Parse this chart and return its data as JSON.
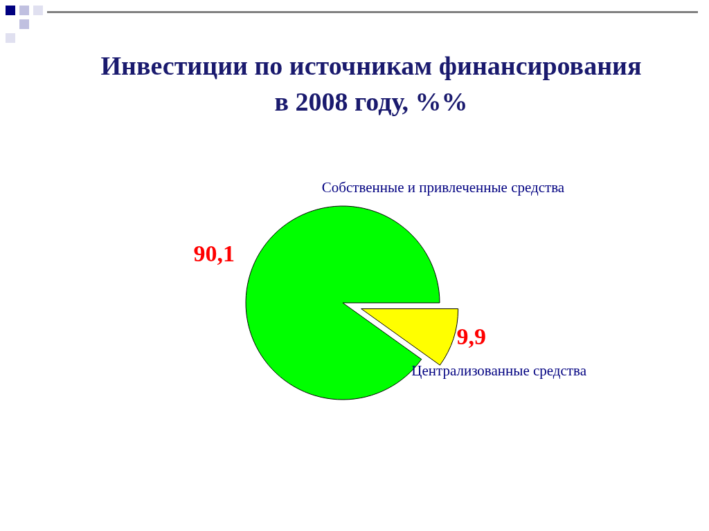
{
  "chart_data": {
    "type": "pie",
    "title": "Инвестиции по источникам финансирования в 2008 году, %%",
    "categories": [
      "Собственные и привлеченные средства",
      "Централизованные средства"
    ],
    "values": [
      90.1,
      9.9
    ],
    "colors": [
      "#00ff00",
      "#ffff00"
    ],
    "value_labels": [
      "90,1",
      "9,9"
    ]
  }
}
